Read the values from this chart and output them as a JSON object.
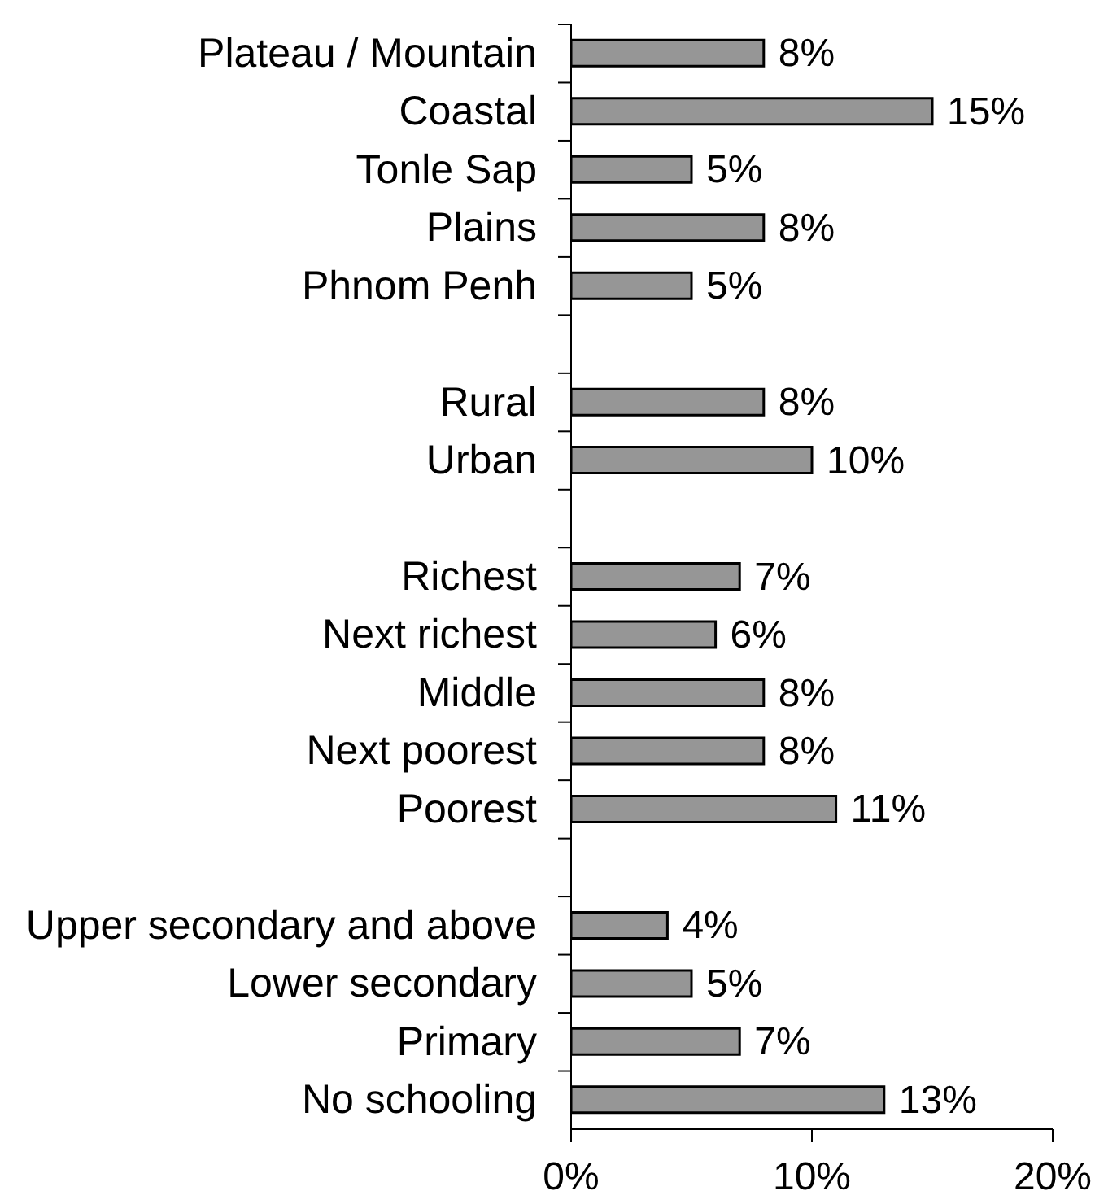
{
  "chart_data": {
    "type": "bar",
    "orientation": "horizontal",
    "categories": [
      "Plateau / Mountain",
      "Coastal",
      "Tonle Sap",
      "Plains",
      "Phnom Penh",
      null,
      "Rural",
      "Urban",
      null,
      "Richest",
      "Next richest",
      "Middle",
      "Next poorest",
      "Poorest",
      null,
      "Upper secondary and above",
      "Lower secondary",
      "Primary",
      "No schooling"
    ],
    "values": [
      8,
      15,
      5,
      8,
      5,
      null,
      8,
      10,
      null,
      7,
      6,
      8,
      8,
      11,
      null,
      4,
      5,
      7,
      13
    ],
    "value_labels": [
      "8%",
      "15%",
      "5%",
      "8%",
      "5%",
      null,
      "8%",
      "10%",
      null,
      "7%",
      "6%",
      "8%",
      "8%",
      "11%",
      null,
      "4%",
      "5%",
      "7%",
      "13%"
    ],
    "color": "#969696",
    "xlim": [
      0,
      20
    ],
    "xticks": [
      {
        "value": 0,
        "label": "0%"
      },
      {
        "value": 10,
        "label": "10%"
      },
      {
        "value": 20,
        "label": "20%"
      }
    ]
  }
}
